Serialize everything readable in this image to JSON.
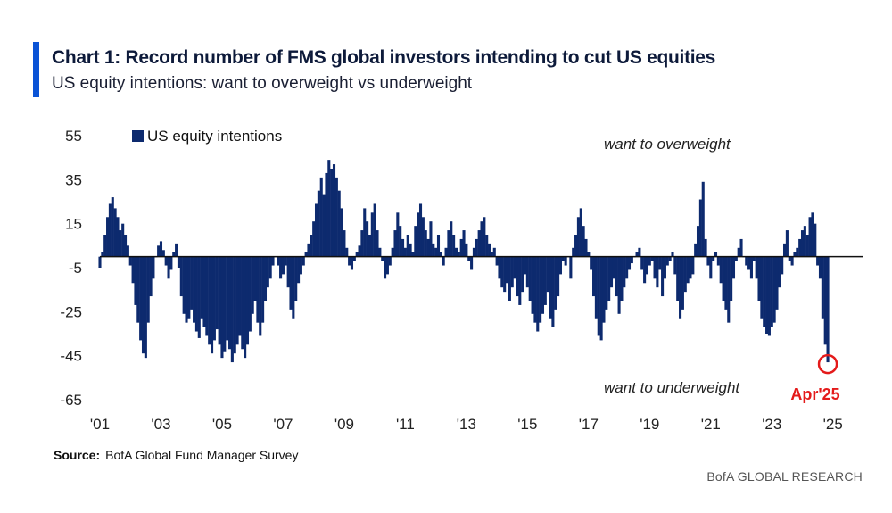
{
  "header": {
    "title": "Chart 1: Record number of FMS global investors intending to cut US equities",
    "subtitle": "US equity intentions: want to overweight vs underweight"
  },
  "colors": {
    "accent": "#0a53d6",
    "series": "#0d2a6e",
    "highlight": "#e41a1a"
  },
  "chart_data": {
    "type": "bar",
    "title": "Chart 1: Record number of FMS global investors intending to cut US equities",
    "subtitle": "US equity intentions: want to overweight vs underweight",
    "xlabel": "",
    "ylabel": "",
    "ylim": [
      -65,
      55
    ],
    "xlim": [
      2001,
      2026
    ],
    "y_ticks": [
      "55",
      "35",
      "15",
      "-5",
      "-25",
      "-45",
      "-65"
    ],
    "x_ticks": [
      "'01",
      "'03",
      "'05",
      "'07",
      "'09",
      "'11",
      "'13",
      "'15",
      "'17",
      "'19",
      "'21",
      "'23",
      "'25"
    ],
    "grid": false,
    "baseline": 0,
    "legend": {
      "label": "US equity intentions",
      "position": "top-left"
    },
    "annotations": {
      "overweight": "want to overweight",
      "underweight": "want to underweight",
      "highlight": "Apr'25"
    },
    "series": [
      {
        "name": "US equity intentions",
        "start": "2001-01",
        "frequency": "monthly",
        "values": [
          -5,
          2,
          10,
          18,
          24,
          27,
          22,
          18,
          12,
          15,
          10,
          5,
          -4,
          -12,
          -22,
          -30,
          -38,
          -44,
          -46,
          -30,
          -18,
          -10,
          0,
          5,
          7,
          3,
          -4,
          -10,
          -6,
          2,
          6,
          -5,
          -18,
          -26,
          -30,
          -28,
          -24,
          -30,
          -34,
          -37,
          -28,
          -32,
          -36,
          -40,
          -44,
          -38,
          -33,
          -40,
          -46,
          -43,
          -38,
          -42,
          -48,
          -44,
          -40,
          -36,
          -42,
          -46,
          -40,
          -34,
          -26,
          -20,
          -30,
          -36,
          -30,
          -20,
          -14,
          -10,
          -4,
          0,
          -4,
          -10,
          -8,
          -4,
          -14,
          -24,
          -28,
          -20,
          -12,
          -8,
          -4,
          2,
          6,
          10,
          16,
          24,
          30,
          36,
          28,
          38,
          44,
          40,
          42,
          36,
          30,
          22,
          12,
          4,
          -4,
          -6,
          -2,
          2,
          5,
          12,
          22,
          16,
          10,
          20,
          24,
          12,
          4,
          -2,
          -10,
          -8,
          -4,
          4,
          12,
          20,
          14,
          8,
          4,
          10,
          6,
          2,
          14,
          20,
          24,
          18,
          12,
          8,
          16,
          6,
          4,
          10,
          2,
          -4,
          4,
          12,
          16,
          10,
          4,
          2,
          8,
          12,
          6,
          -2,
          -6,
          4,
          8,
          12,
          16,
          18,
          10,
          6,
          2,
          4,
          -4,
          -10,
          -14,
          -16,
          -12,
          -20,
          -14,
          -10,
          -18,
          -22,
          -16,
          -8,
          -14,
          -20,
          -26,
          -30,
          -34,
          -30,
          -26,
          -22,
          -16,
          -28,
          -32,
          -24,
          -18,
          -8,
          -2,
          -4,
          0,
          -10,
          4,
          10,
          18,
          22,
          14,
          8,
          2,
          -6,
          -18,
          -28,
          -36,
          -38,
          -30,
          -24,
          -20,
          -14,
          -10,
          -18,
          -26,
          -20,
          -14,
          -10,
          -6,
          -3,
          0,
          2,
          4,
          -6,
          -12,
          -8,
          -4,
          -2,
          -10,
          -14,
          -6,
          -18,
          -10,
          -4,
          -2,
          2,
          -8,
          -20,
          -28,
          -24,
          -16,
          -12,
          -10,
          -8,
          6,
          14,
          26,
          34,
          8,
          -4,
          -10,
          -2,
          2,
          -4,
          -12,
          -20,
          -24,
          -30,
          -20,
          -10,
          -2,
          4,
          8,
          0,
          -4,
          -6,
          -10,
          -2,
          -10,
          -20,
          -28,
          -32,
          -35,
          -36,
          -32,
          -30,
          -24,
          -14,
          -8,
          6,
          12,
          -2,
          -4,
          2,
          4,
          8,
          12,
          14,
          10,
          18,
          20,
          15,
          -4,
          -10,
          -28,
          -40,
          -48
        ]
      }
    ]
  },
  "footer": {
    "source_label": "Source:",
    "source_text": "BofA Global Fund Manager Survey",
    "brand": "BofA GLOBAL RESEARCH"
  }
}
